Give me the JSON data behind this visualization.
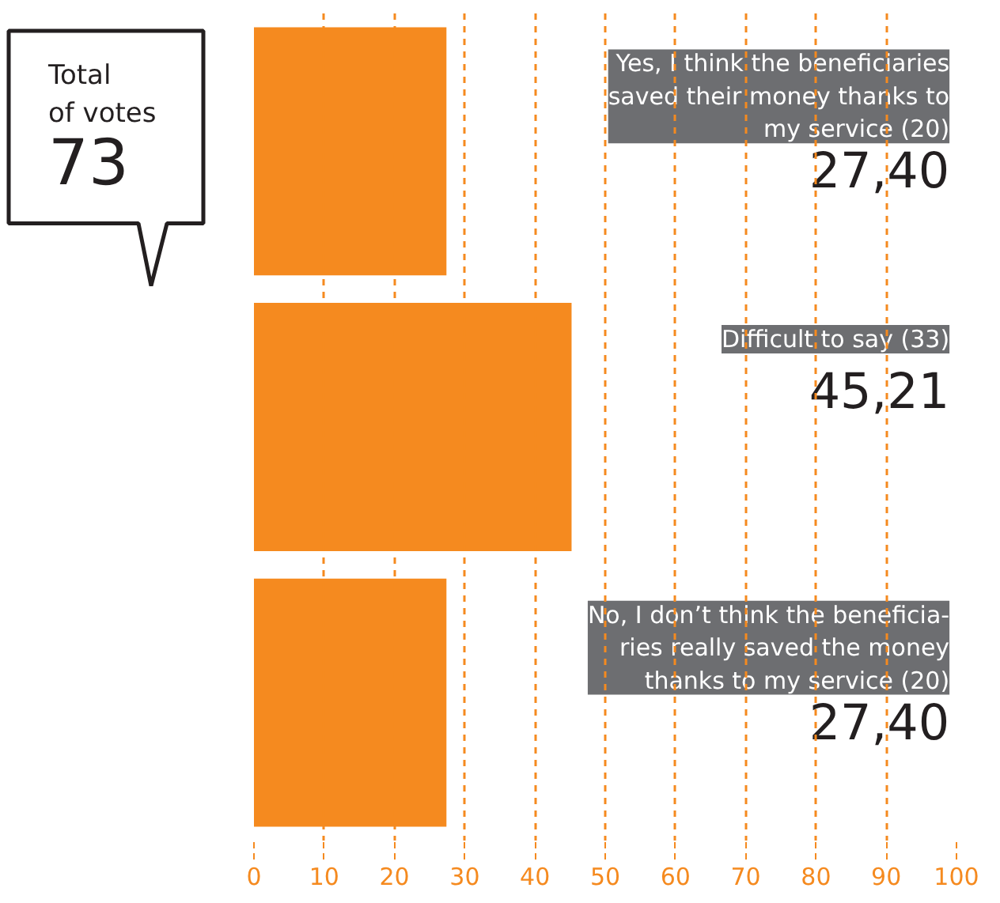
{
  "chart_data": {
    "type": "bar",
    "orientation": "horizontal",
    "categories": [
      "Yes, I think the beneficiaries\nsaved their money thanks to\nmy service (20)",
      "Difficult to say (33)",
      "No, I don’t think the beneficia-\nries really saved the money\nthanks to my service (20)"
    ],
    "values": [
      27.4,
      45.21,
      27.4
    ],
    "value_labels": [
      "27,40",
      "45,21",
      "27,40"
    ],
    "color": "#f58a1f",
    "xlim": [
      0,
      100
    ],
    "xticks": [
      0,
      10,
      20,
      30,
      40,
      50,
      60,
      70,
      80,
      90,
      100
    ],
    "grid": "x",
    "annotations": [
      "Total\nof votes",
      "73"
    ]
  }
}
